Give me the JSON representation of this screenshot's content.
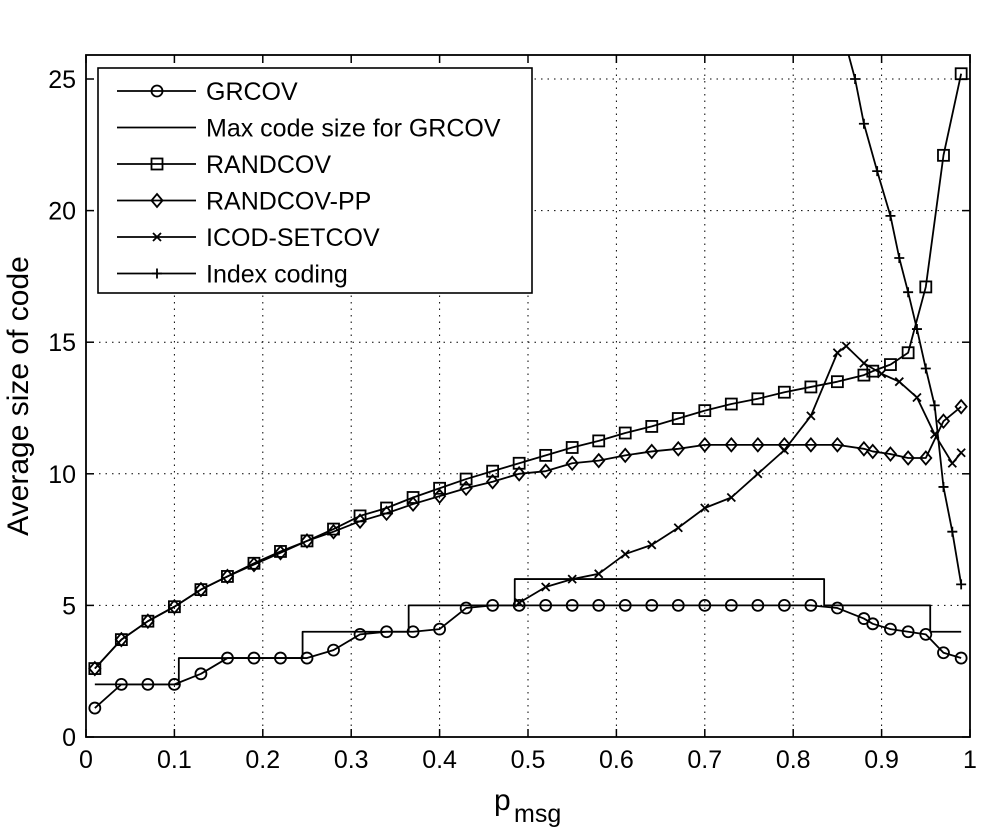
{
  "chart_data": {
    "type": "line",
    "xlabel": "p",
    "xlabel_sub": "msg",
    "ylabel": "Average size of code",
    "xlim": [
      0,
      1
    ],
    "ylim": [
      0,
      25.5
    ],
    "xticks": [
      0,
      0.1,
      0.2,
      0.3,
      0.4,
      0.5,
      0.6,
      0.7,
      0.8,
      0.9,
      1
    ],
    "xtick_labels": [
      "0",
      "0.1",
      "0.2",
      "0.3",
      "0.4",
      "0.5",
      "0.6",
      "0.7",
      "0.8",
      "0.9",
      "1"
    ],
    "yticks": [
      0,
      5,
      10,
      15,
      20,
      25
    ],
    "ytick_labels": [
      "0",
      "5",
      "10",
      "15",
      "20",
      "25"
    ],
    "grid": true,
    "legend_position": "top-left",
    "series": [
      {
        "name": "GRCOV",
        "marker": "circle",
        "x": [
          0.01,
          0.04,
          0.07,
          0.1,
          0.13,
          0.16,
          0.19,
          0.22,
          0.25,
          0.28,
          0.31,
          0.34,
          0.37,
          0.4,
          0.43,
          0.46,
          0.49,
          0.52,
          0.55,
          0.58,
          0.61,
          0.64,
          0.67,
          0.7,
          0.73,
          0.76,
          0.79,
          0.82,
          0.85,
          0.88,
          0.89,
          0.91,
          0.93,
          0.95,
          0.97,
          0.99
        ],
        "y": [
          1.1,
          2.0,
          2.0,
          2.0,
          2.4,
          3.0,
          3.0,
          3.0,
          3.0,
          3.3,
          3.9,
          4.0,
          4.0,
          4.1,
          4.9,
          5.0,
          5.0,
          5.0,
          5.0,
          5.0,
          5.0,
          5.0,
          5.0,
          5.0,
          5.0,
          5.0,
          5.0,
          5.0,
          4.9,
          4.5,
          4.3,
          4.1,
          4.0,
          3.9,
          3.2,
          3.0
        ]
      },
      {
        "name": "Max code size for GRCOV",
        "marker": "none",
        "x": [
          0.01,
          0.105,
          0.105,
          0.245,
          0.245,
          0.365,
          0.365,
          0.485,
          0.485,
          0.835,
          0.835,
          0.955,
          0.955,
          0.99
        ],
        "y": [
          2,
          2,
          3,
          3,
          4,
          4,
          5,
          5,
          6,
          6,
          5,
          5,
          4,
          4
        ]
      },
      {
        "name": "RANDCOV",
        "marker": "square",
        "x": [
          0.01,
          0.04,
          0.07,
          0.1,
          0.13,
          0.16,
          0.19,
          0.22,
          0.25,
          0.28,
          0.31,
          0.34,
          0.37,
          0.4,
          0.43,
          0.46,
          0.49,
          0.52,
          0.55,
          0.58,
          0.61,
          0.64,
          0.67,
          0.7,
          0.73,
          0.76,
          0.79,
          0.82,
          0.85,
          0.88,
          0.89,
          0.91,
          0.93,
          0.95,
          0.97,
          0.99
        ],
        "y": [
          2.6,
          3.7,
          4.4,
          4.95,
          5.6,
          6.1,
          6.6,
          7.05,
          7.45,
          7.9,
          8.4,
          8.7,
          9.1,
          9.45,
          9.8,
          10.1,
          10.4,
          10.7,
          11.0,
          11.25,
          11.55,
          11.8,
          12.1,
          12.4,
          12.65,
          12.85,
          13.1,
          13.3,
          13.5,
          13.75,
          13.9,
          14.15,
          14.6,
          17.1,
          22.1,
          25.2
        ]
      },
      {
        "name": "RANDCOV-PP",
        "marker": "diamond",
        "x": [
          0.01,
          0.04,
          0.07,
          0.1,
          0.13,
          0.16,
          0.19,
          0.22,
          0.25,
          0.28,
          0.31,
          0.34,
          0.37,
          0.4,
          0.43,
          0.46,
          0.49,
          0.52,
          0.55,
          0.58,
          0.61,
          0.64,
          0.67,
          0.7,
          0.73,
          0.76,
          0.79,
          0.82,
          0.85,
          0.88,
          0.89,
          0.91,
          0.93,
          0.95,
          0.97,
          0.99
        ],
        "y": [
          2.6,
          3.7,
          4.4,
          4.95,
          5.6,
          6.1,
          6.55,
          7.0,
          7.45,
          7.8,
          8.2,
          8.5,
          8.85,
          9.15,
          9.45,
          9.7,
          10.0,
          10.1,
          10.4,
          10.5,
          10.7,
          10.85,
          10.95,
          11.1,
          11.1,
          11.1,
          11.1,
          11.1,
          11.1,
          10.95,
          10.85,
          10.75,
          10.6,
          10.6,
          12.0,
          12.55
        ]
      },
      {
        "name": "ICOD-SETCOV",
        "marker": "x",
        "x": [
          0.49,
          0.52,
          0.55,
          0.58,
          0.61,
          0.64,
          0.67,
          0.7,
          0.73,
          0.76,
          0.79,
          0.82,
          0.85,
          0.86,
          0.88,
          0.9,
          0.92,
          0.94,
          0.96,
          0.98,
          0.99
        ],
        "y": [
          5.1,
          5.7,
          6.0,
          6.2,
          6.95,
          7.3,
          7.95,
          8.7,
          9.1,
          10.0,
          10.9,
          12.2,
          14.6,
          14.85,
          14.2,
          13.8,
          13.5,
          12.9,
          11.5,
          10.4,
          10.8
        ]
      },
      {
        "name": "Index coding",
        "marker": "plus",
        "x": [
          0.85,
          0.87,
          0.88,
          0.895,
          0.91,
          0.92,
          0.93,
          0.94,
          0.95,
          0.96,
          0.97,
          0.98,
          0.99
        ],
        "y": [
          27.5,
          25.0,
          23.3,
          21.5,
          19.8,
          18.2,
          16.9,
          15.5,
          14.0,
          12.6,
          9.5,
          7.8,
          5.8
        ]
      }
    ]
  }
}
